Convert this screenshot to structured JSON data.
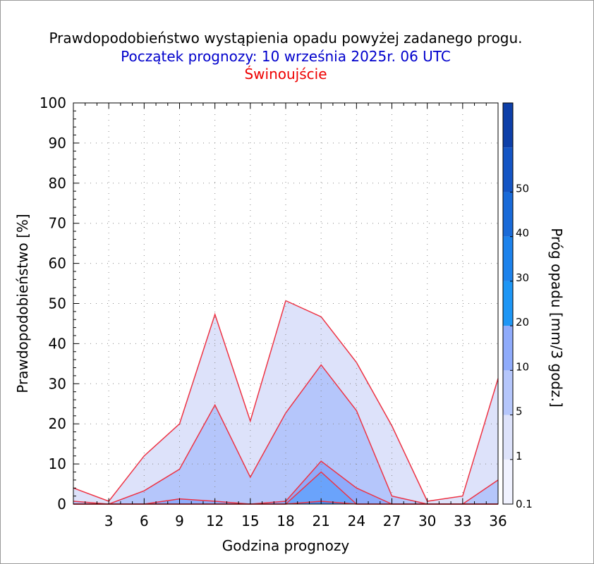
{
  "titles": {
    "main": "Prawdopodobieństwo wystąpienia opadu powyżej zadanego progu.",
    "forecast_start": "Początek prognozy: 10 września 2025r. 06 UTC",
    "location": "Świnoujście"
  },
  "colors": {
    "title_main": "#000000",
    "title_start": "#0000cc",
    "title_location": "#ee0000",
    "series_line": "#ee3344"
  },
  "chart_data": {
    "type": "area",
    "xlabel": "Godzina prognozy",
    "ylabel": "Prawdopodobieństwo [%]",
    "x": [
      0,
      3,
      6,
      9,
      12,
      15,
      18,
      21,
      24,
      27,
      30,
      33,
      36
    ],
    "xticks": [
      3,
      6,
      9,
      12,
      15,
      18,
      21,
      24,
      27,
      30,
      33,
      36
    ],
    "xlim": [
      0,
      36
    ],
    "yticks": [
      0,
      10,
      20,
      30,
      40,
      50,
      60,
      70,
      80,
      90,
      100
    ],
    "ylim": [
      0,
      100
    ],
    "grid": true,
    "series": [
      {
        "name": "0.1",
        "color": "#dde2fa",
        "values": [
          4,
          0.7,
          12,
          20,
          47.3,
          20.7,
          50.7,
          46.7,
          35.3,
          19.5,
          0.7,
          2,
          31.3
        ]
      },
      {
        "name": "1",
        "color": "#b5c6fb",
        "values": [
          0.7,
          0,
          3.3,
          8.7,
          24.7,
          6.7,
          22.7,
          34.7,
          23.3,
          2,
          0,
          0,
          6
        ]
      },
      {
        "name": "5",
        "color": "#8fabfb",
        "values": [
          0,
          0,
          0,
          1.3,
          0.7,
          0,
          0.7,
          10.7,
          4,
          0,
          0,
          0,
          0
        ]
      },
      {
        "name": "10",
        "color": "#6aa3fb",
        "values": [
          0,
          0,
          0,
          0,
          0,
          0,
          0,
          8,
          0,
          0,
          0,
          0,
          0
        ]
      },
      {
        "name": "20",
        "color": "#4a8af0",
        "values": [
          0,
          0,
          0,
          0,
          0,
          0,
          0,
          0.7,
          0,
          0,
          0,
          0,
          0
        ]
      }
    ],
    "colorbar": {
      "title": "Próg opadu [mm/3 godz.]",
      "labels": [
        "0.1",
        "1",
        "5",
        "10",
        "20",
        "30",
        "40",
        "50"
      ],
      "bands": [
        "#f0f2ff",
        "#dde2fa",
        "#b5c6fb",
        "#8fabfb",
        "#1e96f5",
        "#1d82eb",
        "#196ad8",
        "#1455c4",
        "#0d3fa8"
      ]
    }
  }
}
